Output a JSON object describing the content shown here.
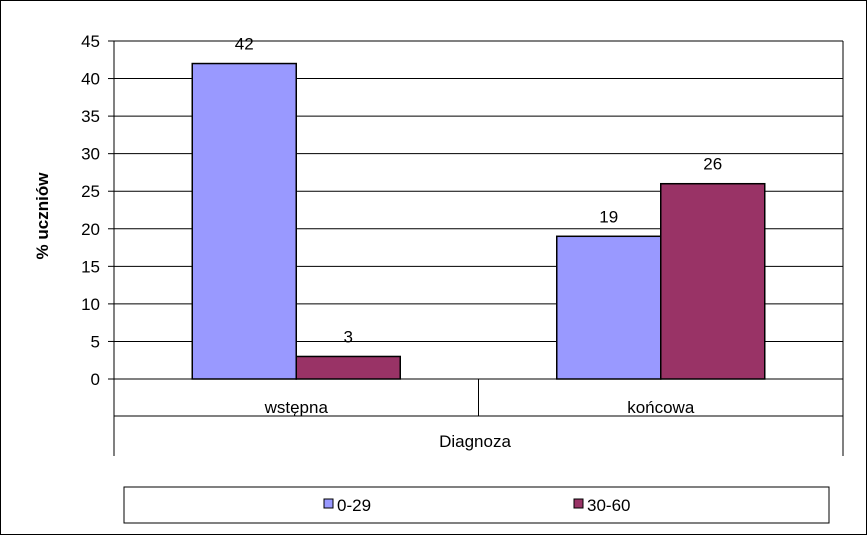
{
  "chart_data": {
    "type": "bar",
    "categories": [
      "wstępna",
      "końcowa"
    ],
    "group_label": "Diagnoza",
    "ylabel": "% uczniów",
    "ylim": [
      0,
      45
    ],
    "ytick_step": 5,
    "ytick_labels": [
      "0",
      "5",
      "10",
      "15",
      "20",
      "25",
      "30",
      "35",
      "40",
      "45"
    ],
    "grid": true,
    "legend": "bottom",
    "series": [
      {
        "name": "0-29",
        "values": [
          42,
          19
        ],
        "color": "#9999ff"
      },
      {
        "name": "30-60",
        "values": [
          3,
          26
        ],
        "color": "#993366"
      }
    ]
  }
}
